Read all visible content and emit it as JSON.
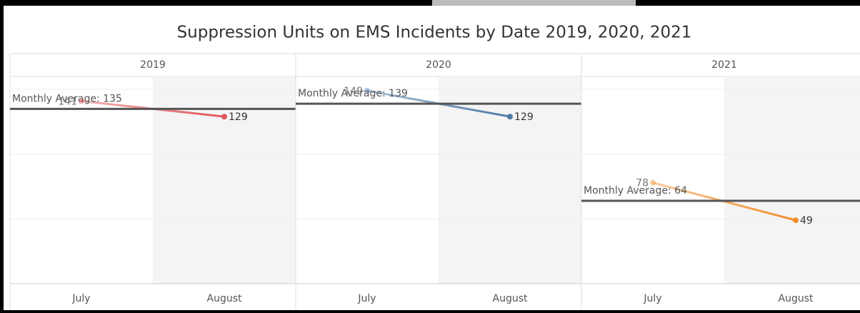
{
  "chart_data": {
    "type": "line",
    "title": "Suppression Units on EMS Incidents by Date 2019, 2020, 2021",
    "categories": [
      "July",
      "August"
    ],
    "panels": [
      {
        "name": "2019",
        "color": "#e15759",
        "values": [
          141,
          129
        ],
        "average": 135,
        "average_label": "Monthly Average: 135"
      },
      {
        "name": "2020",
        "color": "#4e79a7",
        "values": [
          149,
          129
        ],
        "average": 139,
        "average_label": "Monthly Average: 139"
      },
      {
        "name": "2021",
        "color": "#f28e2b",
        "values": [
          78,
          49
        ],
        "average": 64,
        "average_label": "Monthly Average: 64"
      }
    ],
    "ylim": [
      0,
      160
    ],
    "yticks": [
      0,
      50,
      100,
      150
    ],
    "grid": true
  }
}
